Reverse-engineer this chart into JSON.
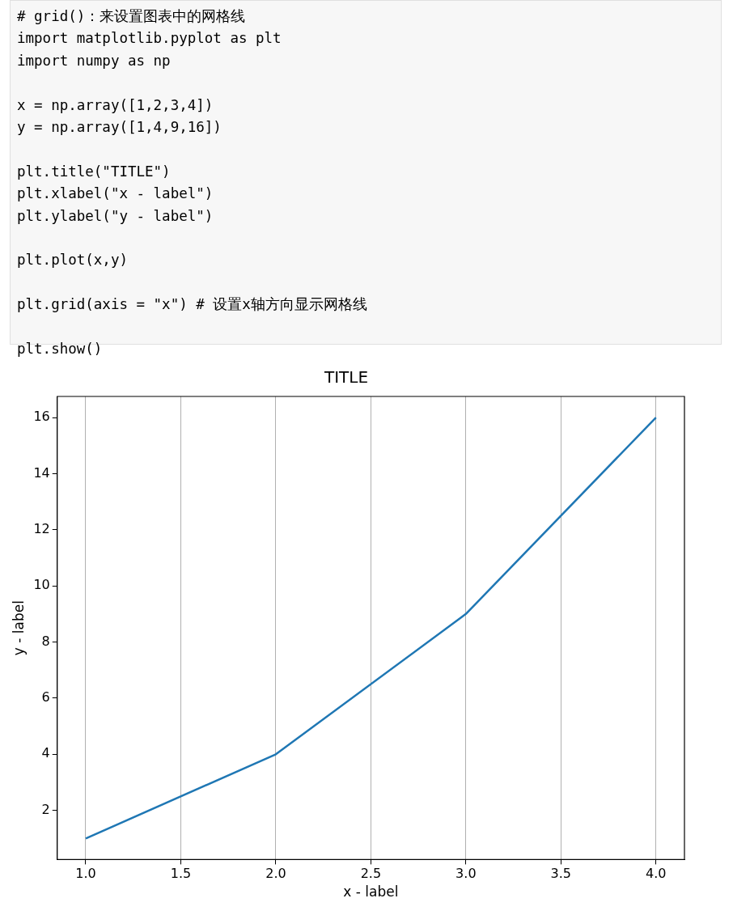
{
  "chart_data": {
    "type": "line",
    "title": "TITLE",
    "xlabel": "x - label",
    "ylabel": "y - label",
    "annotations": [
      "# grid()：来设置图表中的网格线\nimport matplotlib.pyplot as plt\nimport numpy as np\n\nx = np.array([1,2,3,4])\ny = np.array([1,4,9,16])\n\nplt.title(\"TITLE\")\nplt.xlabel(\"x - label\")\nplt.ylabel(\"y - label\")\n\nplt.plot(x,y)\n\nplt.grid(axis = \"x\") # 设置x轴方向显示网格线\n\nplt.show()"
    ],
    "x": [
      1,
      2,
      3,
      4
    ],
    "series": [
      {
        "color": "#1f77b4",
        "values": [
          1,
          4,
          9,
          16
        ]
      }
    ],
    "xlim": [
      0.85,
      4.15
    ],
    "xticks": [
      {
        "value": 1,
        "label": "1.0"
      },
      {
        "value": 1.5,
        "label": "1.5"
      },
      {
        "value": 2,
        "label": "2.0"
      },
      {
        "value": 2.5,
        "label": "2.5"
      },
      {
        "value": 3,
        "label": "3.0"
      },
      {
        "value": 3.5,
        "label": "3.5"
      },
      {
        "value": 4,
        "label": "4.0"
      }
    ],
    "ylim": [
      0.25,
      16.75
    ],
    "yticks": [
      2,
      4,
      6,
      8,
      10,
      12,
      14,
      16
    ],
    "grid": "x",
    "legend": false,
    "marker": "none",
    "line_style": "solid"
  }
}
